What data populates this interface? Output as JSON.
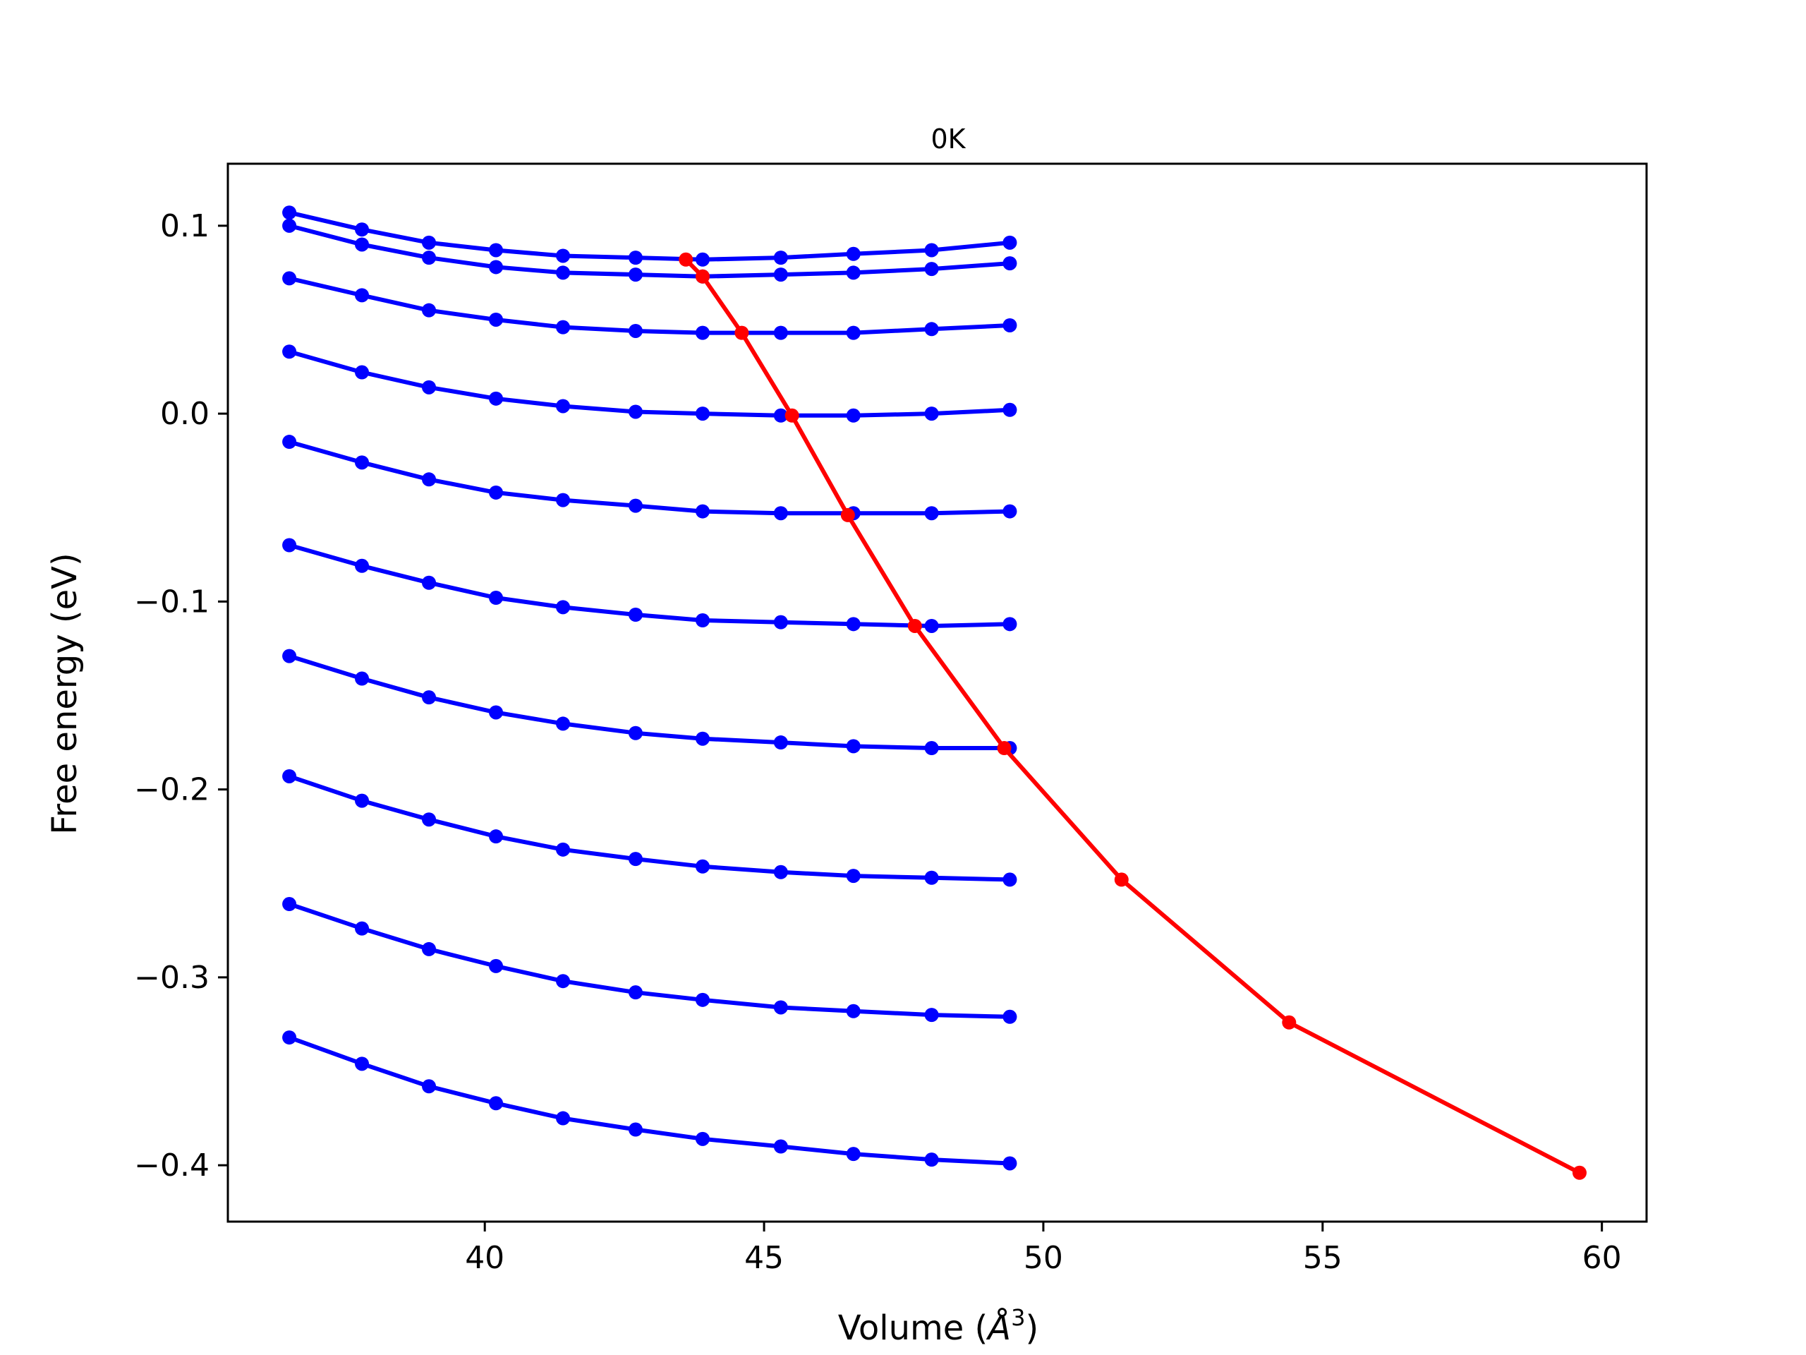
{
  "chart_data": {
    "type": "line",
    "title": "0K",
    "xlabel_prefix": "Volume (",
    "xlabel_symbol": "Å",
    "xlabel_exponent": "3",
    "xlabel_suffix": ")",
    "ylabel": "Free energy (eV)",
    "xlim": [
      35.4,
      60.8
    ],
    "ylim": [
      -0.43,
      0.133
    ],
    "xticks": [
      40,
      45,
      50,
      55,
      60
    ],
    "xtick_labels": [
      "40",
      "45",
      "50",
      "55",
      "60"
    ],
    "yticks": [
      0.1,
      0.0,
      -0.1,
      -0.2,
      -0.3,
      -0.4
    ],
    "ytick_labels": [
      "0.1",
      "0.0",
      "−0.1",
      "−0.2",
      "−0.3",
      "−0.4"
    ],
    "grid": false,
    "colors": {
      "isotherm": "#0000ff",
      "minimum": "#ff0000"
    },
    "x": [
      36.5,
      37.8,
      39.0,
      40.2,
      41.4,
      42.7,
      43.9,
      45.3,
      46.6,
      48.0,
      49.4
    ],
    "series": [
      {
        "values": [
          0.107,
          0.098,
          0.091,
          0.087,
          0.084,
          0.083,
          0.082,
          0.083,
          0.085,
          0.087,
          0.091
        ]
      },
      {
        "values": [
          0.1,
          0.09,
          0.083,
          0.078,
          0.075,
          0.074,
          0.073,
          0.074,
          0.075,
          0.077,
          0.08
        ]
      },
      {
        "values": [
          0.072,
          0.063,
          0.055,
          0.05,
          0.046,
          0.044,
          0.043,
          0.043,
          0.043,
          0.045,
          0.047
        ]
      },
      {
        "values": [
          0.033,
          0.022,
          0.014,
          0.008,
          0.004,
          0.001,
          0.0,
          -0.001,
          -0.001,
          0.0,
          0.002
        ]
      },
      {
        "values": [
          -0.015,
          -0.026,
          -0.035,
          -0.042,
          -0.046,
          -0.049,
          -0.052,
          -0.053,
          -0.053,
          -0.053,
          -0.052
        ]
      },
      {
        "values": [
          -0.07,
          -0.081,
          -0.09,
          -0.098,
          -0.103,
          -0.107,
          -0.11,
          -0.111,
          -0.112,
          -0.113,
          -0.112
        ]
      },
      {
        "values": [
          -0.129,
          -0.141,
          -0.151,
          -0.159,
          -0.165,
          -0.17,
          -0.173,
          -0.175,
          -0.177,
          -0.178,
          -0.178
        ]
      },
      {
        "values": [
          -0.193,
          -0.206,
          -0.216,
          -0.225,
          -0.232,
          -0.237,
          -0.241,
          -0.244,
          -0.246,
          -0.247,
          -0.248
        ]
      },
      {
        "values": [
          -0.261,
          -0.274,
          -0.285,
          -0.294,
          -0.302,
          -0.308,
          -0.312,
          -0.316,
          -0.318,
          -0.32,
          -0.321
        ]
      },
      {
        "values": [
          -0.332,
          -0.346,
          -0.358,
          -0.367,
          -0.375,
          -0.381,
          -0.386,
          -0.39,
          -0.394,
          -0.397,
          -0.399
        ]
      }
    ],
    "minimum_curve": {
      "x": [
        43.6,
        43.9,
        44.6,
        45.5,
        46.5,
        47.7,
        49.3,
        51.4,
        54.4,
        59.6
      ],
      "y": [
        0.082,
        0.073,
        0.043,
        -0.001,
        -0.054,
        -0.113,
        -0.178,
        -0.248,
        -0.324,
        -0.404
      ]
    }
  }
}
